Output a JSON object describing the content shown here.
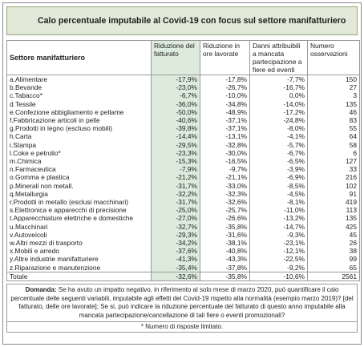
{
  "title": "Calo percentuale imputabile al Covid-19 con focus sul settore manifatturiero",
  "headers": {
    "sector": "Settore manifatturiero",
    "revenue": "Riduzione del fatturato",
    "hours": "Riduzione in ore lavorate",
    "damages": "Danni attribuibili a mancata partecipazione a fiere ed eventi",
    "obs": "Numero osservazioni"
  },
  "rows": [
    {
      "sector": "a.Alimentare",
      "revenue": "-17,9%",
      "hours": "-17,8%",
      "damages": "-7,7%",
      "obs": "150"
    },
    {
      "sector": "b.Bevande",
      "revenue": "-23,0%",
      "hours": "-26,7%",
      "damages": "-16,7%",
      "obs": "27"
    },
    {
      "sector": "c.Tabacco*",
      "revenue": "-6,7%",
      "hours": "-10,0%",
      "damages": "0,0%",
      "obs": "3"
    },
    {
      "sector": "d.Tessile",
      "revenue": "-36,0%",
      "hours": "-34,8%",
      "damages": "-14,0%",
      "obs": "135"
    },
    {
      "sector": "e.Confezione abbigliamento e pellame",
      "revenue": "-50,0%",
      "hours": "-48,9%",
      "damages": "-17,2%",
      "obs": "46"
    },
    {
      "sector": "f.Fabbricazione articoli in pelle",
      "revenue": "-40,6%",
      "hours": "-37,1%",
      "damages": "-24,8%",
      "obs": "83"
    },
    {
      "sector": "g.Prodotti in legno (escluso mobili)",
      "revenue": "-39,8%",
      "hours": "-37,1%",
      "damages": "-8,0%",
      "obs": "55"
    },
    {
      "sector": "h.Carta",
      "revenue": "-14,4%",
      "hours": "-13,1%",
      "damages": "-4,1%",
      "obs": "64"
    },
    {
      "sector": "i.Stampa",
      "revenue": "-29,5%",
      "hours": "-32,8%",
      "damages": "-5,7%",
      "obs": "58"
    },
    {
      "sector": "l.Coke e petrolio*",
      "revenue": "-23,3%",
      "hours": "-30,0%",
      "damages": "-6,7%",
      "obs": "6"
    },
    {
      "sector": "m.Chimica",
      "revenue": "-15,3%",
      "hours": "-16,5%",
      "damages": "-6,5%",
      "obs": "127"
    },
    {
      "sector": "n.Farmaceutica",
      "revenue": "-7,9%",
      "hours": "-9,7%",
      "damages": "-3,9%",
      "obs": "33"
    },
    {
      "sector": "o.Gomma e plastica",
      "revenue": "-21,2%",
      "hours": "-21,1%",
      "damages": "-6,9%",
      "obs": "216"
    },
    {
      "sector": "p.Minerali non metall.",
      "revenue": "-31,7%",
      "hours": "-33,0%",
      "damages": "-8,5%",
      "obs": "102"
    },
    {
      "sector": "q.Metallurgia",
      "revenue": "-32,2%",
      "hours": "-32,3%",
      "damages": "-4,5%",
      "obs": "91"
    },
    {
      "sector": "r.Prodotti in metallo (esclusi macchinari)",
      "revenue": "-31,7%",
      "hours": "-32,6%",
      "damages": "-8,1%",
      "obs": "419"
    },
    {
      "sector": "s.Elettronica e apparecchi di precisione",
      "revenue": "-25,0%",
      "hours": "-25,7%",
      "damages": "-11,0%",
      "obs": "113"
    },
    {
      "sector": "t.Apparecchiature elettriche e domestiche",
      "revenue": "-27,0%",
      "hours": "-26,6%",
      "damages": "-13,2%",
      "obs": "135"
    },
    {
      "sector": "u.Macchinari",
      "revenue": "-32,7%",
      "hours": "-35,8%",
      "damages": "-14,7%",
      "obs": "425"
    },
    {
      "sector": "v.Autoveicoli",
      "revenue": "-29,3%",
      "hours": "-31,6%",
      "damages": "-9,3%",
      "obs": "45"
    },
    {
      "sector": "w.Altri mezzi di trasporto",
      "revenue": "-34,2%",
      "hours": "-38,1%",
      "damages": "-23,1%",
      "obs": "26"
    },
    {
      "sector": "x.Mobili e arredo",
      "revenue": "-37,6%",
      "hours": "-40,8%",
      "damages": "-12,1%",
      "obs": "38"
    },
    {
      "sector": "y.Altre industrie manifatturiere",
      "revenue": "-41,3%",
      "hours": "-43,3%",
      "damages": "-22,5%",
      "obs": "99"
    },
    {
      "sector": "z.Riparazione e manutenzione",
      "revenue": "-35,4%",
      "hours": "-37,8%",
      "damages": "-9,2%",
      "obs": "65"
    }
  ],
  "total": {
    "sector": "Totale",
    "revenue": "-32,6%",
    "hours": "-35,8%",
    "damages": "-10,6%",
    "obs": "2561"
  },
  "note": {
    "label": "Domanda:",
    "text": "Se ha avuto un impatto negativo, in riferimento al solo mese di marzo 2020, può quantificare il calo percentuale delle seguenti variabili, imputabile agli effetti del Covid-19 rispetto alla normalità (esempio marzo 2019)? [del fatturato, delle ore lavorate]; Se si, può indicare la riduzione percentuale del fatturato di questo anno imputabile alla mancata partecipazione/cancellazione di tali fiere o eventi promozionali?"
  },
  "footnote": "* Numero di risposte limitato.",
  "colors": {
    "highlight": "#dcebdc",
    "title_bg": "#e3e9d8",
    "border": "#9a9a9a"
  }
}
